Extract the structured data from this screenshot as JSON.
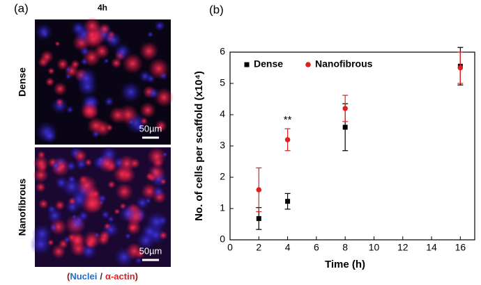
{
  "panel_a": {
    "label": "(a)",
    "time": "4h",
    "rows": [
      "Dense",
      "Nanofibrous"
    ],
    "scale_bar": [
      "50µm",
      "50µm"
    ],
    "caption": [
      "(",
      "Nuclei",
      "/",
      "α-actin",
      ")"
    ]
  },
  "chart_data": {
    "type": "scatter",
    "panel_label": "(b)",
    "annotation": "**",
    "xlabel": "Time (h)",
    "ylabel": "No. of cells per scaffold (x10⁴)",
    "x": [
      2,
      4,
      8,
      16
    ],
    "series": [
      {
        "name": "Dense",
        "color": "#000000",
        "marker": "square",
        "values": [
          0.68,
          1.23,
          3.6,
          5.55
        ],
        "errors": [
          0.35,
          0.25,
          0.75,
          0.6
        ]
      },
      {
        "name": "Nanofibrous",
        "color": "#e02020",
        "marker": "circle",
        "values": [
          1.6,
          3.2,
          4.2,
          5.5
        ],
        "errors": [
          0.7,
          0.35,
          0.42,
          0.5
        ]
      }
    ],
    "xlim": [
      0,
      17
    ],
    "xticks": [
      0,
      2,
      4,
      6,
      8,
      10,
      12,
      14,
      16
    ],
    "ylim": [
      0,
      6
    ],
    "yticks": [
      0,
      1,
      2,
      3,
      4,
      5,
      6
    ],
    "legend": "upper-left",
    "grid": false
  }
}
